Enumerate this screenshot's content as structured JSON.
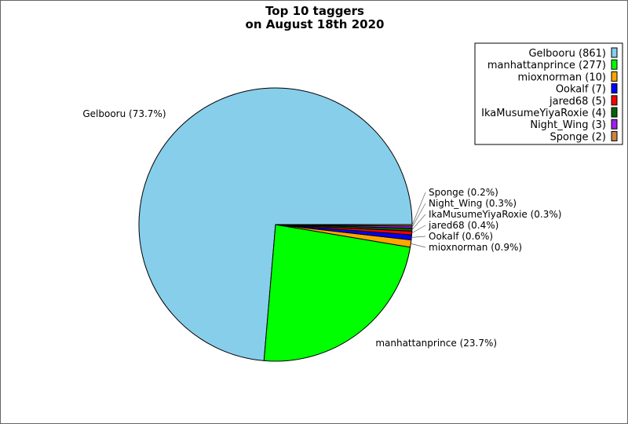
{
  "chart_data": {
    "type": "pie",
    "title_lines": [
      "Top 10 taggers",
      "on August 18th 2020"
    ],
    "legend_position": "top-right",
    "slices": [
      {
        "name": "Gelbooru",
        "value": 861,
        "legend": "Gelbooru (861)",
        "label": "Gelbooru (73.7%)",
        "color": "#87ceeb"
      },
      {
        "name": "manhattanprince",
        "value": 277,
        "legend": "manhattanprince (277)",
        "label": "manhattanprince (23.7%)",
        "color": "#00ff00"
      },
      {
        "name": "mioxnorman",
        "value": 10,
        "legend": "mioxnorman (10)",
        "label": "mioxnorman (0.9%)",
        "color": "#ffa500"
      },
      {
        "name": "Ookalf",
        "value": 7,
        "legend": "Ookalf (7)",
        "label": "Ookalf (0.6%)",
        "color": "#0000ff"
      },
      {
        "name": "jared68",
        "value": 5,
        "legend": "jared68 (5)",
        "label": "jared68 (0.4%)",
        "color": "#ff0000"
      },
      {
        "name": "IkaMusumeYiyaRoxie",
        "value": 4,
        "legend": "IkaMusumeYiyaRoxie (4)",
        "label": "IkaMusumeYiyaRoxie (0.3%)",
        "color": "#006400"
      },
      {
        "name": "Night_Wing",
        "value": 3,
        "legend": "Night_Wing (3)",
        "label": "Night_Wing (0.3%)",
        "color": "#a020f0"
      },
      {
        "name": "Sponge",
        "value": 2,
        "legend": "Sponge (2)",
        "label": "Sponge (0.2%)",
        "color": "#cd853f"
      }
    ]
  }
}
